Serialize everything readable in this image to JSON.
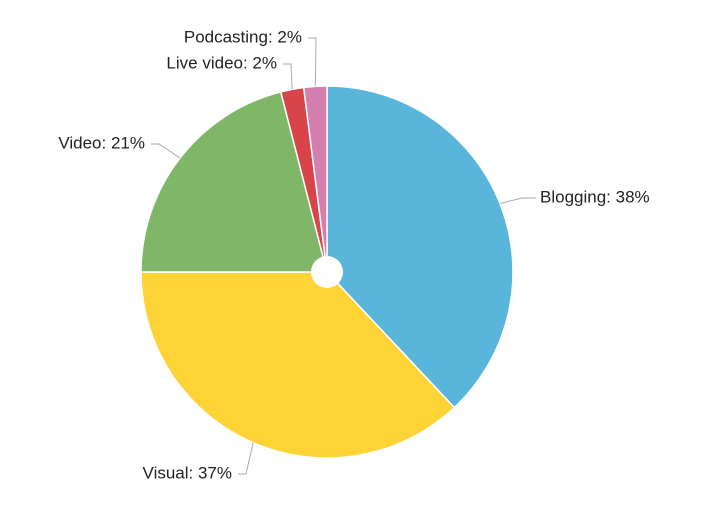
{
  "chart_data": {
    "type": "pie",
    "values": [
      38,
      37,
      21,
      2,
      2
    ],
    "value_labels": [
      "Blogging: 38%",
      "Visual: 37%",
      "Video: 21%",
      "Live video: 2%",
      "Podcasting: 2%"
    ],
    "colors": [
      "#5ab5db",
      "#fed335",
      "#80b668",
      "#d9444a",
      "#d47fb0"
    ]
  }
}
